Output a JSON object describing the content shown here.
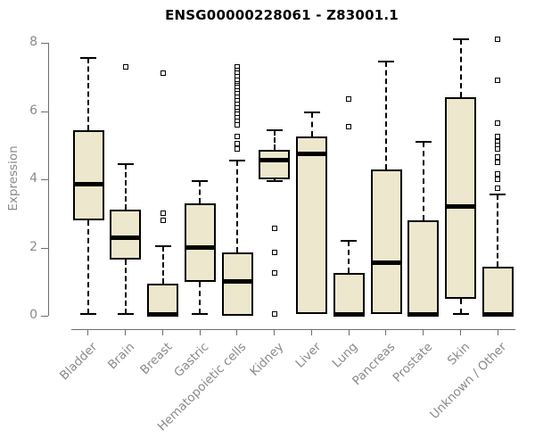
{
  "page": {
    "background": "#ffffff"
  },
  "chart_data": {
    "type": "boxplot",
    "title": "ENSG00000228061 - Z83001.1",
    "ylabel": "Expression",
    "xlabel": "",
    "ylim": [
      0,
      8
    ],
    "yticks": [
      0,
      2,
      4,
      6,
      8
    ],
    "grid": false,
    "legend": "none",
    "colors": {
      "box_fill": "#ede7cd",
      "box_border": "#000000",
      "median": "#000000",
      "whisker": "#000000",
      "outlier": "#000000",
      "axis": "#6e6e6e",
      "tick_label": "#8a8a8a",
      "title": "#000000"
    },
    "categories": [
      "Bladder",
      "Brain",
      "Breast",
      "Gastric",
      "Hematopoietic cells",
      "Kidney",
      "Liver",
      "Lung",
      "Pancreas",
      "Prostate",
      "Skin",
      "Unknown / Other"
    ],
    "series": [
      {
        "name": "Bladder",
        "low": 0.05,
        "q1": 2.8,
        "median": 3.85,
        "q3": 5.45,
        "high": 7.55,
        "outliers": []
      },
      {
        "name": "Brain",
        "low": 0.05,
        "q1": 1.65,
        "median": 2.3,
        "q3": 3.1,
        "high": 4.45,
        "outliers": [
          7.3
        ]
      },
      {
        "name": "Breast",
        "low": 0,
        "q1": 0,
        "median": 0.05,
        "q3": 0.95,
        "high": 2.05,
        "outliers": [
          7.1,
          3.0,
          2.8
        ]
      },
      {
        "name": "Gastric",
        "low": 0.05,
        "q1": 1.0,
        "median": 2.0,
        "q3": 3.3,
        "high": 3.95,
        "outliers": []
      },
      {
        "name": "Hematopoietic cells",
        "low": 0,
        "q1": 0,
        "median": 1.0,
        "q3": 1.85,
        "high": 4.55,
        "outliers": [
          7.3,
          7.2,
          7.1,
          7.0,
          6.9,
          6.8,
          6.75,
          6.7,
          6.6,
          6.5,
          6.4,
          6.3,
          6.2,
          6.1,
          6.0,
          5.9,
          5.8,
          5.7,
          5.6,
          5.25,
          5.05,
          4.9
        ]
      },
      {
        "name": "Kidney",
        "low": 3.95,
        "q1": 4.0,
        "median": 4.55,
        "q3": 4.85,
        "high": 5.45,
        "outliers": [
          2.55,
          1.85,
          1.25,
          0.05
        ]
      },
      {
        "name": "Liver",
        "low": 0.05,
        "q1": 0.05,
        "median": 4.75,
        "q3": 5.25,
        "high": 5.95,
        "outliers": []
      },
      {
        "name": "Lung",
        "low": 0,
        "q1": 0,
        "median": 0.05,
        "q3": 1.25,
        "high": 2.2,
        "outliers": [
          6.35,
          5.55
        ]
      },
      {
        "name": "Pancreas",
        "low": 0.05,
        "q1": 0.05,
        "median": 1.55,
        "q3": 4.3,
        "high": 7.45,
        "outliers": []
      },
      {
        "name": "Prostate",
        "low": 0,
        "q1": 0,
        "median": 0.05,
        "q3": 2.8,
        "high": 5.1,
        "outliers": []
      },
      {
        "name": "Skin",
        "low": 0.05,
        "q1": 0.5,
        "median": 3.2,
        "q3": 6.4,
        "high": 8.1,
        "outliers": []
      },
      {
        "name": "Unknown / Other",
        "low": 0,
        "q1": 0,
        "median": 0.05,
        "q3": 1.45,
        "high": 3.55,
        "outliers": [
          8.1,
          6.9,
          5.65,
          5.25,
          5.1,
          5.0,
          4.9,
          4.65,
          4.5,
          4.15,
          4.0,
          3.75
        ]
      }
    ]
  }
}
